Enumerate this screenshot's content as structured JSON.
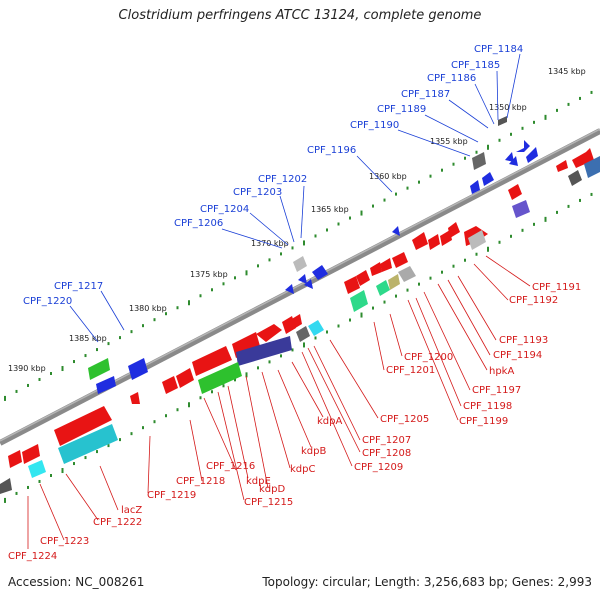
{
  "title": "Clostridium perfringens ATCC 13124, complete genome",
  "accession": "Accession: NC_008261",
  "topology": "Topology: circular; Length: 3,256,683 bp; Genes: 2,993",
  "colors": {
    "forward_label": "#1a3fd6",
    "reverse_label": "#d41a1a",
    "backbone": "#8a8a8a",
    "tick": "#2e8b2e"
  },
  "kbp_labels": [
    "1345 kbp",
    "1350 kbp",
    "1355 kbp",
    "1360 kbp",
    "1365 kbp",
    "1370 kbp",
    "1375 kbp",
    "1380 kbp",
    "1385 kbp",
    "1390 kbp"
  ],
  "forward_genes": [
    "CPF_1184",
    "CPF_1185",
    "CPF_1186",
    "CPF_1187",
    "CPF_1189",
    "CPF_1190",
    "CPF_1196",
    "CPF_1202",
    "CPF_1203",
    "CPF_1204",
    "CPF_1206",
    "CPF_1217",
    "CPF_1220"
  ],
  "reverse_genes": [
    "CPF_1191",
    "CPF_1192",
    "CPF_1193",
    "CPF_1194",
    "hpkA",
    "CPF_1197",
    "CPF_1198",
    "CPF_1199",
    "CPF_1200",
    "CPF_1201",
    "CPF_1205",
    "CPF_1207",
    "CPF_1208",
    "CPF_1209",
    "kdpA",
    "kdpB",
    "kdpC",
    "kdpD",
    "kdpE",
    "CPF_1215",
    "CPF_1216",
    "CPF_1218",
    "CPF_1219",
    "lacZ",
    "CPF_1222",
    "CPF_1223",
    "CPF_1224"
  ]
}
